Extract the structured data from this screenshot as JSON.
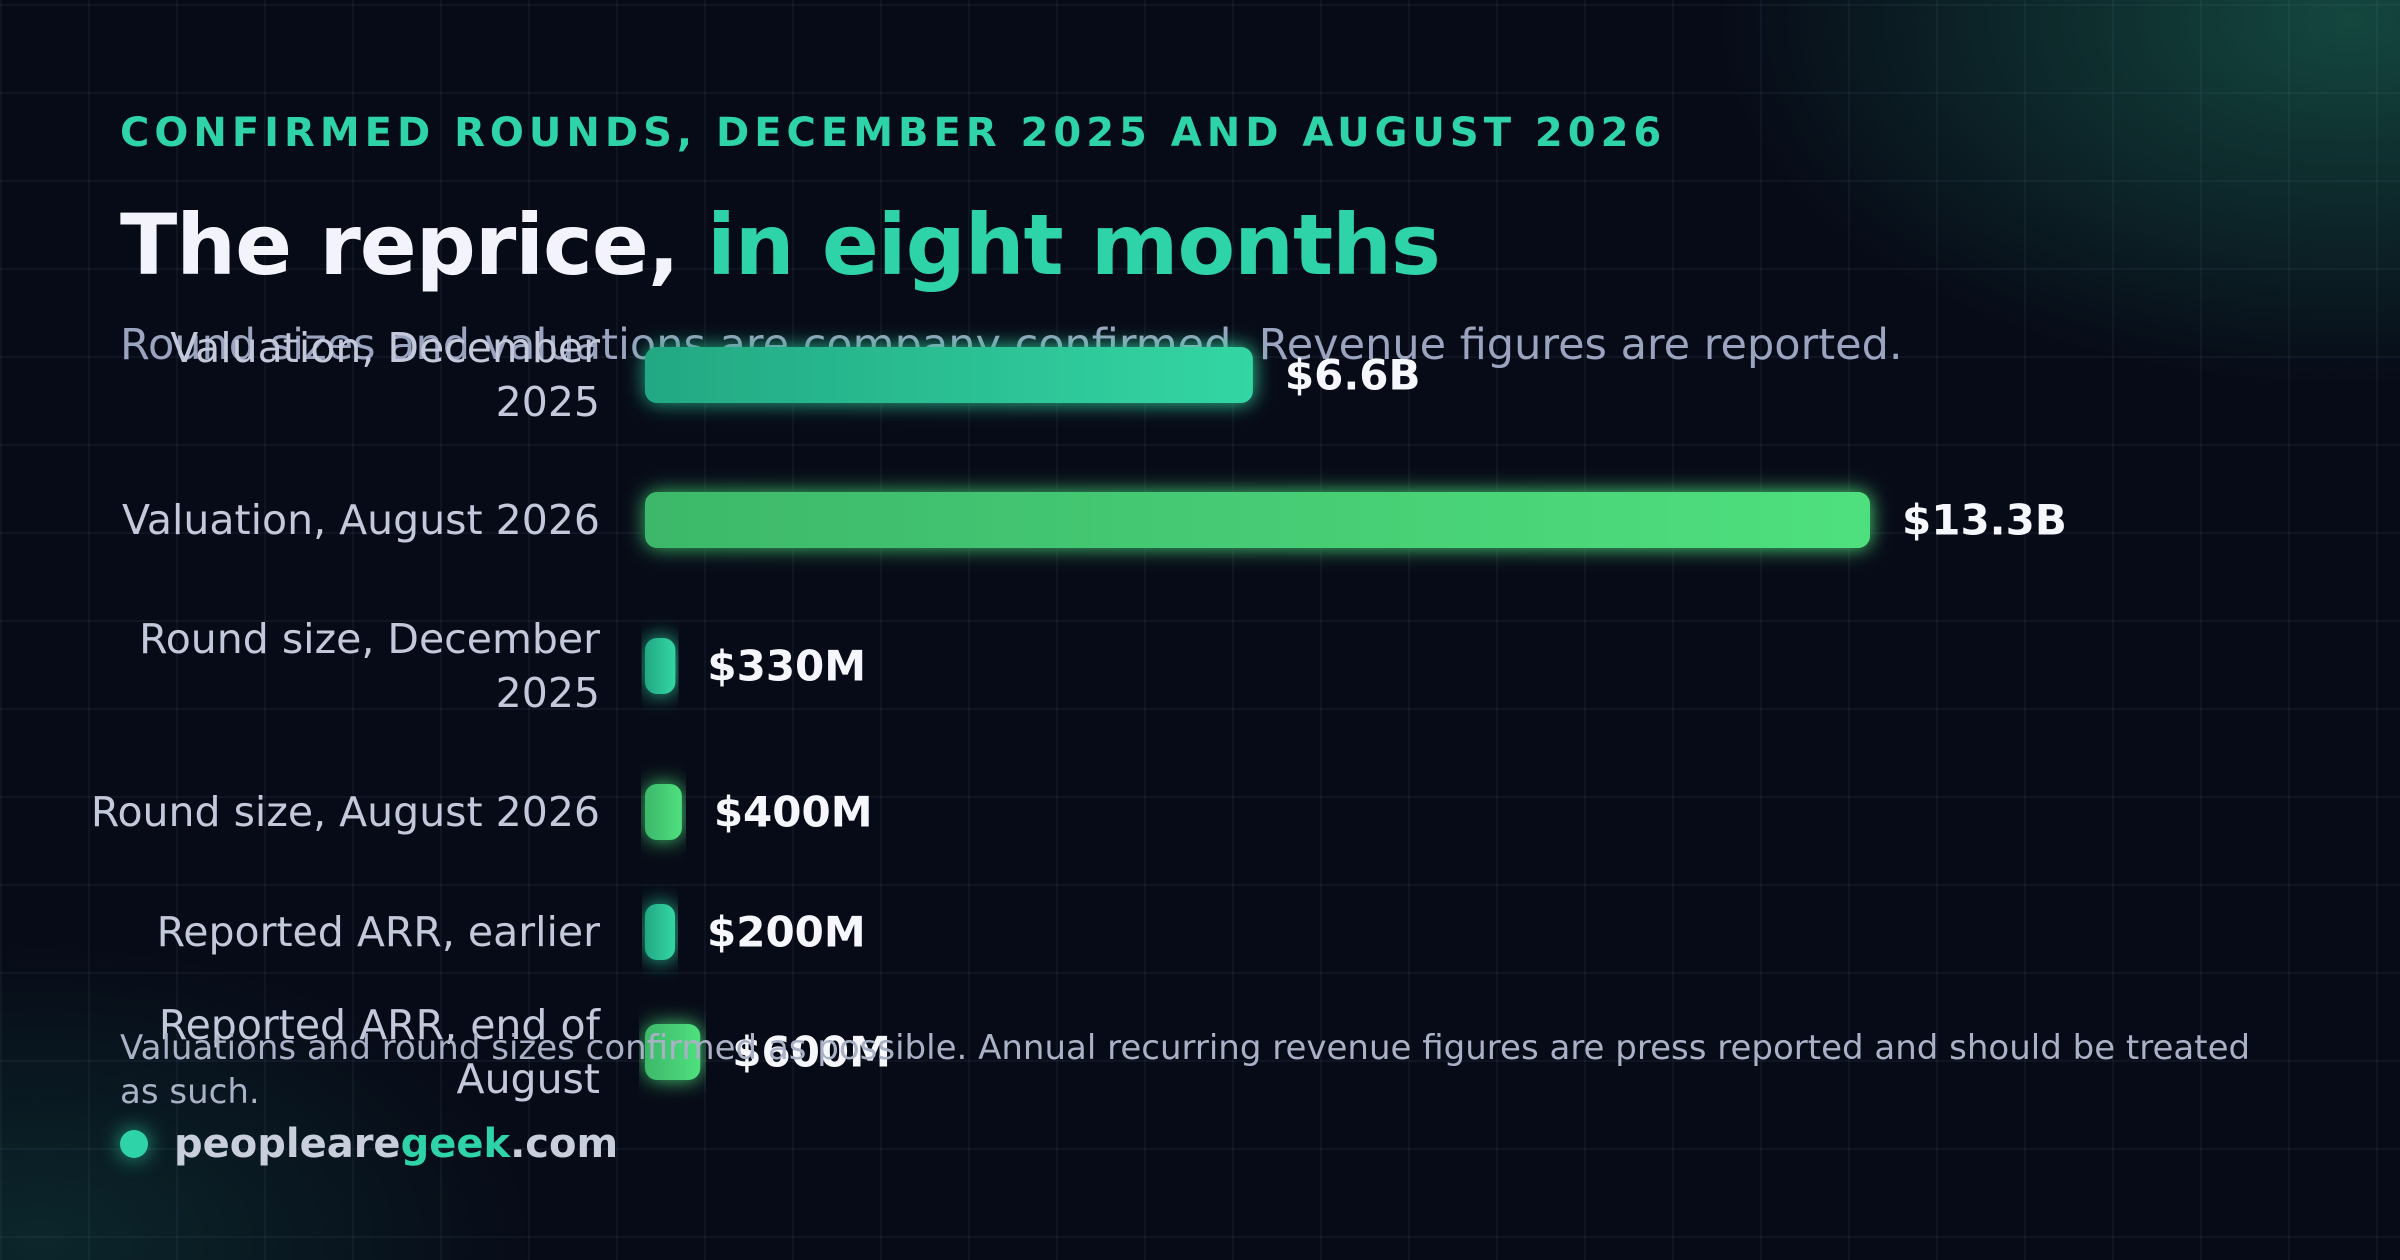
{
  "header": {
    "eyebrow": "CONFIRMED ROUNDS, DECEMBER 2025 AND AUGUST 2026",
    "title_main": "The reprice,",
    "title_accent": "in eight months",
    "subtitle": "Round sizes and valuations are company confirmed. Revenue figures are reported."
  },
  "chart_data": {
    "type": "bar",
    "orientation": "horizontal",
    "categories": [
      "Valuation, December 2025",
      "Valuation, August 2026",
      "Round size, December 2025",
      "Round size, August 2026",
      "Reported ARR, earlier",
      "Reported ARR, end of August"
    ],
    "values": [
      6600,
      13300,
      330,
      400,
      200,
      600
    ],
    "unit": "$M",
    "value_labels": [
      "$6.6B",
      "$13.3B",
      "$330M",
      "$400M",
      "$200M",
      "$600M"
    ],
    "xlim": [
      0,
      13300
    ],
    "grid": true,
    "legend": "none",
    "colors": {
      "teal": "#2fd3a8",
      "green": "#4fe07e",
      "teal_dark": "#23a883",
      "green_dark": "#3db86a"
    }
  },
  "footer": {
    "note": "Valuations and round sizes confirmed as possible. Annual recurring revenue figures are press reported and should be treated as such.",
    "brand_pre": "peopleare",
    "brand_hi": "geek",
    "brand_post": ".com"
  }
}
